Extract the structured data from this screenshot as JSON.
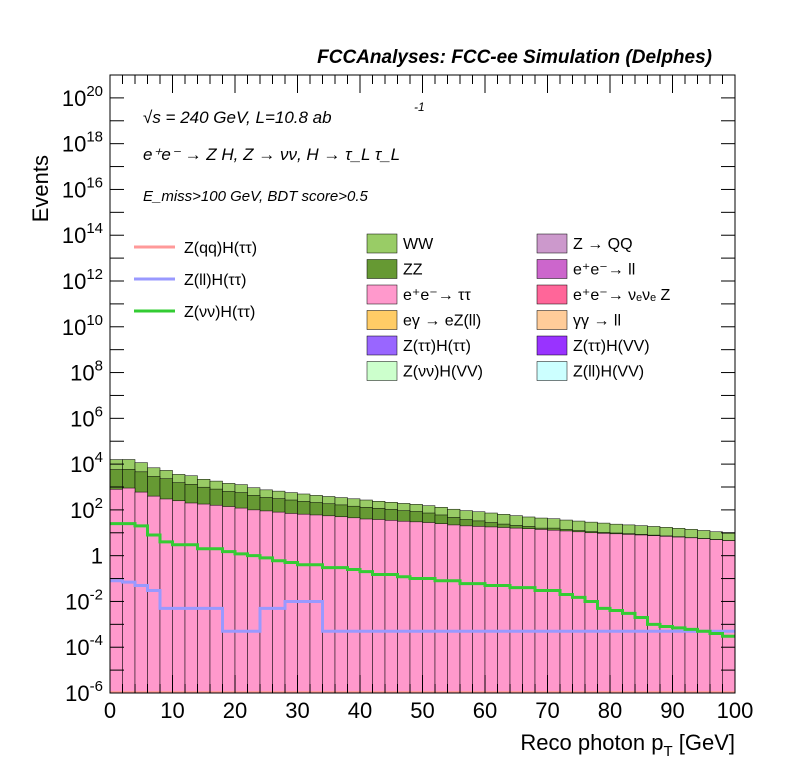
{
  "header": {
    "title": "FCCAnalyses: FCC-ee Simulation (Delphes)"
  },
  "annotations": {
    "energy": "√s = 240 GeV, L=10.8 ab",
    "energy_exp": "-1",
    "process": "e⁺e⁻ → Z H, Z → νν, H → τ_L τ_L",
    "selection": "E_miss>100 GeV, BDT score>0.5"
  },
  "chart_data": {
    "type": "histogram-stacked",
    "title": "FCCAnalyses: FCC-ee Simulation (Delphes)",
    "xlabel": "Reco photon p_T [GeV]",
    "ylabel": "Events",
    "xlim": [
      0,
      100
    ],
    "ylim": [
      1e-06,
      1e+21
    ],
    "log_y": true,
    "bin_width": 2,
    "x_ticks": [
      0,
      10,
      20,
      30,
      40,
      50,
      60,
      70,
      80,
      90,
      100
    ],
    "y_tick_labels": [
      {
        "label": "10",
        "exp": "-6",
        "value": 1e-06
      },
      {
        "label": "10",
        "exp": "-4",
        "value": 0.0001
      },
      {
        "label": "10",
        "exp": "-2",
        "value": 0.01
      },
      {
        "label": "1",
        "exp": "",
        "value": 1
      },
      {
        "label": "10",
        "exp": "2",
        "value": 100
      },
      {
        "label": "10",
        "exp": "4",
        "value": 10000
      },
      {
        "label": "10",
        "exp": "6",
        "value": 1000000
      },
      {
        "label": "10",
        "exp": "8",
        "value": 100000000
      },
      {
        "label": "10",
        "exp": "10",
        "value": 10000000000
      },
      {
        "label": "10",
        "exp": "12",
        "value": 1000000000000
      },
      {
        "label": "10",
        "exp": "14",
        "value": 100000000000000
      },
      {
        "label": "10",
        "exp": "16",
        "value": 1e+16
      },
      {
        "label": "10",
        "exp": "18",
        "value": 1e+18
      },
      {
        "label": "10",
        "exp": "20",
        "value": 1e+20
      }
    ],
    "legend_position": "top-right",
    "stack_top_layers": [
      {
        "name": "WW",
        "color": "#99cc66",
        "values": [
          10000,
          10000,
          7000,
          4000,
          3000,
          2000,
          1800,
          1200,
          1000,
          800,
          700,
          500,
          400,
          350,
          300,
          260,
          220,
          200,
          180,
          160,
          140,
          120,
          110,
          100,
          90,
          80,
          70,
          60,
          55,
          50,
          45,
          40,
          35,
          30,
          28,
          25,
          22,
          20,
          18,
          16,
          14,
          13,
          12,
          11,
          10,
          9,
          8,
          7,
          6,
          5
        ]
      },
      {
        "name": "ZZ",
        "color": "#669933",
        "values": [
          5000,
          5000,
          4000,
          2500,
          2000,
          1300,
          1100,
          800,
          650,
          500,
          450,
          330,
          260,
          230,
          200,
          170,
          150,
          130,
          115,
          100,
          90,
          80,
          70,
          60,
          55,
          45,
          35,
          25,
          18,
          14,
          10,
          7,
          5,
          4,
          2,
          3,
          2,
          1.5,
          1.2,
          1,
          0.8,
          0.6,
          0.5,
          0.4,
          0.3,
          0.2,
          0.15,
          0.1,
          0.08,
          0.06
        ]
      },
      {
        "name": "e⁺e⁻→ ττ",
        "color": "#ff99cc",
        "values": [
          800,
          900,
          600,
          400,
          300,
          250,
          200,
          180,
          160,
          140,
          120,
          100,
          90,
          80,
          70,
          65,
          60,
          55,
          50,
          45,
          40,
          38,
          35,
          32,
          30,
          28,
          25,
          22,
          20,
          19,
          18,
          17,
          16,
          15,
          14,
          13,
          12,
          11,
          10,
          9.5,
          9,
          8.5,
          8,
          7.5,
          7,
          6.5,
          6,
          5.5,
          5,
          4.5
        ]
      }
    ],
    "series": [
      {
        "name": "Z(qq)H(ττ)",
        "color": "#ff9999",
        "values": []
      },
      {
        "name": "Z(ll)H(ττ)",
        "color": "#9999ff",
        "values": [
          0.08,
          0.07,
          0.05,
          0.03,
          0.005,
          0.005,
          0.005,
          0.005,
          0.005,
          0.0005,
          0.0005,
          0.0005,
          0.005,
          0.005,
          0.01,
          0.01,
          0.01,
          0.0005,
          0.0005,
          0.0005,
          0.0005,
          0.0005,
          0.0005,
          0.0005,
          0.0005,
          0.0005,
          0.0005,
          0.0005,
          0.0005,
          0.0005,
          0.0005,
          0.0005,
          0.0005,
          0.0005,
          0.0005,
          0.0005,
          0.0005,
          0.0005,
          0.0005,
          0.0005,
          0.0005,
          0.0005,
          0.0005,
          0.0005,
          0.0005,
          0.0005,
          0.0005,
          0.0005,
          0.0005,
          0.0005
        ]
      },
      {
        "name": "Z(νν)H(ττ)",
        "color": "#33cc33",
        "values": [
          25,
          25,
          20,
          8,
          4,
          3,
          3,
          2,
          2,
          1.5,
          1.2,
          1,
          0.8,
          0.6,
          0.5,
          0.4,
          0.4,
          0.3,
          0.3,
          0.25,
          0.2,
          0.15,
          0.15,
          0.12,
          0.1,
          0.1,
          0.08,
          0.08,
          0.06,
          0.06,
          0.05,
          0.05,
          0.04,
          0.04,
          0.03,
          0.03,
          0.02,
          0.015,
          0.01,
          0.005,
          0.004,
          0.003,
          0.002,
          0.001,
          0.0008,
          0.0007,
          0.0006,
          0.0005,
          0.0004,
          0.0003
        ]
      }
    ],
    "legend_columns": [
      [
        {
          "name": "WW",
          "color": "#99cc66"
        },
        {
          "name": "ZZ",
          "color": "#669933"
        },
        {
          "name": "e⁺e⁻→ ττ",
          "color": "#ff99cc"
        },
        {
          "name": "eγ → eZ(ll)",
          "color": "#ffcc66"
        },
        {
          "name": "Z(ττ)H(ττ)",
          "color": "#9966ff"
        },
        {
          "name": "Z(νν)H(VV)",
          "color": "#ccffcc"
        }
      ],
      [
        {
          "name": "Z → QQ",
          "color": "#cc99cc"
        },
        {
          "name": "e⁺e⁻→ ll",
          "color": "#cc66cc"
        },
        {
          "name": "e⁺e⁻→ νₑνₑ Z",
          "color": "#ff6699"
        },
        {
          "name": "γγ → ll",
          "color": "#ffcc99"
        },
        {
          "name": "Z(ττ)H(VV)",
          "color": "#9933ff"
        },
        {
          "name": "Z(ll)H(VV)",
          "color": "#ccffff"
        }
      ]
    ]
  }
}
